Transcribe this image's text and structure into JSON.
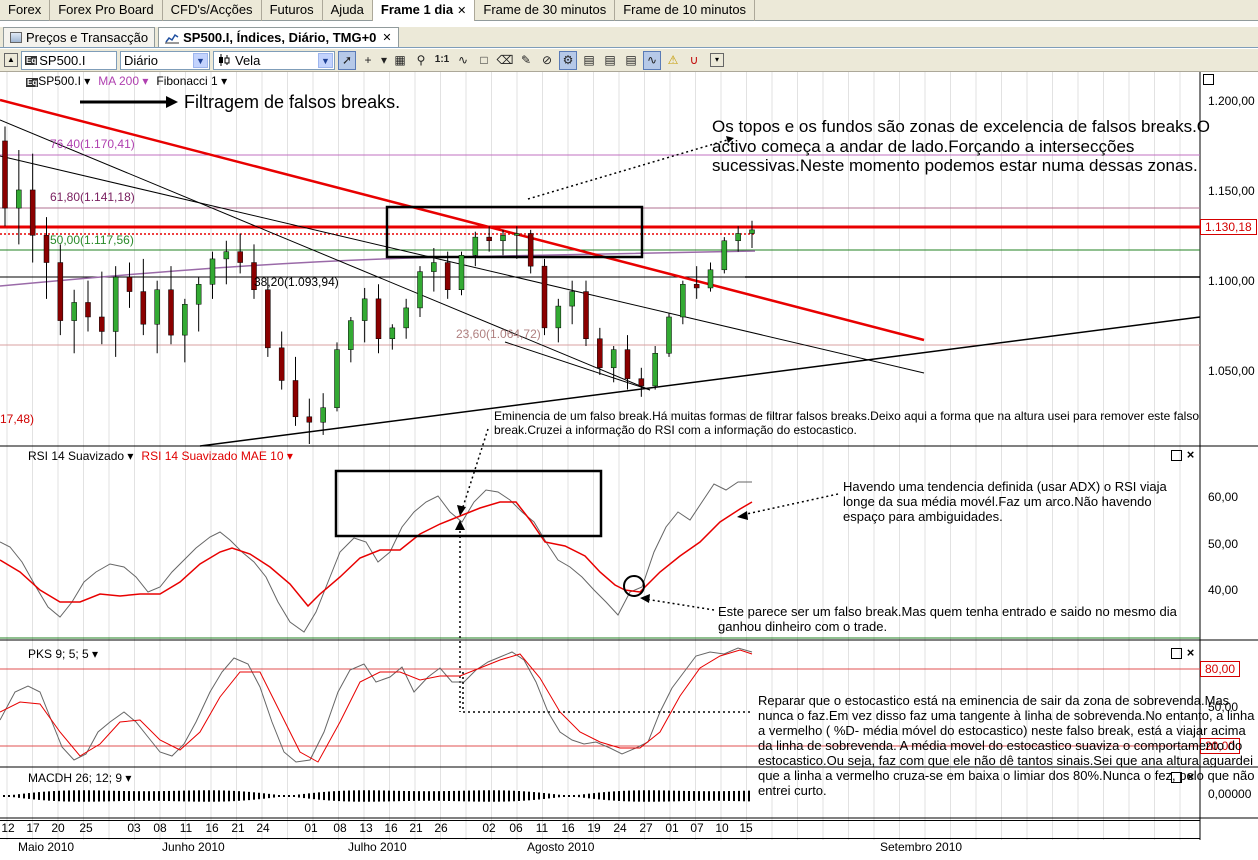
{
  "menu": {
    "tabs": [
      {
        "label": "Forex",
        "active": false
      },
      {
        "label": "Forex Pro Board",
        "active": false
      },
      {
        "label": "CFD's/Acções",
        "active": false
      },
      {
        "label": "Futuros",
        "active": false
      },
      {
        "label": "Ajuda",
        "active": false
      },
      {
        "label": "Frame 1 dia",
        "active": true,
        "closable": true
      },
      {
        "label": "Frame de 30 minutos",
        "active": false
      },
      {
        "label": "Frame de 10 minutos",
        "active": false
      }
    ],
    "close_glyph": "✕"
  },
  "doc_tabs": [
    {
      "label": "Preços e Transacção",
      "active": false,
      "icon": "table-icon"
    },
    {
      "label": "SP500.I, Índices, Diário, TMG+0",
      "active": true,
      "icon": "chart-icon",
      "closable": true
    }
  ],
  "toolbar": {
    "symbol": "SP500.I",
    "symbol_prefix": "Eq",
    "period": "Diário",
    "chart_style": "Vela",
    "icons": [
      "cursor-icon",
      "crosshair-icon",
      "grid-icon",
      "zoom-icon",
      "scale-1-1-icon",
      "wave-icon",
      "rectangle-icon",
      "eraser-icon",
      "pencil-icon",
      "delete-icon",
      "bars-toggle-icon",
      "notes-icon",
      "notes2-icon",
      "notes3-icon",
      "wave-pressed-icon",
      "warning-icon",
      "magnet-icon"
    ]
  },
  "main_pane": {
    "label_symbol": "SP500.I",
    "label_ma": "MA 200",
    "label_fib": "Fibonacci 1",
    "price_ticks": [
      "1.200,00",
      "1.150,00",
      "1.100,00",
      "1.050,00"
    ],
    "current_price": "1.130,18",
    "fib_levels": [
      {
        "label": "76,40(1.170,41)",
        "color": "#b040b0"
      },
      {
        "label": "61,80(1.141,18)",
        "color": "#7a2060"
      },
      {
        "label": "50,00(1.117,56)",
        "color": "#2a8a2a"
      },
      {
        "label": "38,20(1.093,94)",
        "color": "#000000"
      },
      {
        "label": "23,60(1.064,72)",
        "color": "#b08080"
      },
      {
        "label": "17,48)",
        "color": "#d00000"
      }
    ],
    "annotation_title": "Filtragem de falsos breaks.",
    "annotation_topos": "Os topos e os fundos são zonas de excelencia de falsos breaks.O activo começa a andar de lado.Forçando a intersecções sucessivas.Neste momento podemos estar numa dessas zonas.",
    "annotation_eminencia": "Eminencia de um falso break.Há muitas formas de filtrar falsos breaks.Deixo aqui a forma que na altura usei para remover este falso break.Cruzei a informação do RSI com a informação do estocastico."
  },
  "rsi_pane": {
    "label": "RSI 14 Suavizado",
    "label_mae": "RSI 14 Suavizado MAE 10",
    "ticks": [
      "60,00",
      "50,00",
      "40,00"
    ],
    "annotation_tendencia": "Havendo uma tendencia definida (usar ADX) o RSI viaja longe da sua média movél.Faz um arco.Não havendo espaço para ambiguidades.",
    "annotation_falso": "Este parece ser um falso break.Mas quem tenha entrado e saido no mesmo dia ganhou dinheiro com o trade."
  },
  "pks_pane": {
    "label": "PKS 9; 5; 5",
    "ticks": [
      "80,00",
      "50,00",
      "20,00"
    ],
    "annotation_estocastico": "Reparar que o estocastico está na eminencia de sair da zona de sobrevenda.Mas nunca o faz.Em vez disso faz uma tangente à linha de sobrevenda.No entanto, a linha a vermelho ( %D- média móvel do estocastico) neste falso break, está a viajar acima da linha de sobrevenda. A média movel do estocastico suaviza o comportamento do estocastico.Ou seja, faz com que ele não dê tantos sinais.Sei que ana altura aguardei que a linha a vermelho cruza-se em baixa o limiar dos 80%.Nunca o fez, pelo que não entrei curto."
  },
  "macd_pane": {
    "label": "MACDH 26; 12; 9",
    "tick": "0,00000"
  },
  "x_axis": {
    "days": [
      "12",
      "17",
      "20",
      "25",
      "03",
      "08",
      "11",
      "16",
      "21",
      "24",
      "01",
      "08",
      "13",
      "16",
      "21",
      "26",
      "02",
      "06",
      "11",
      "16",
      "19",
      "24",
      "27",
      "01",
      "07",
      "10",
      "15"
    ],
    "months": [
      "Maio 2010",
      "Junho 2010",
      "Julho 2010",
      "Agosto 2010",
      "Setembro 2010"
    ]
  },
  "chart_data": {
    "type": "candlestick",
    "y_range": [
      1010,
      1215
    ],
    "candles": [
      [
        1177,
        1185,
        1130,
        1140
      ],
      [
        1140,
        1172,
        1120,
        1150
      ],
      [
        1150,
        1170,
        1110,
        1125
      ],
      [
        1125,
        1135,
        1090,
        1110
      ],
      [
        1110,
        1120,
        1070,
        1078
      ],
      [
        1078,
        1095,
        1060,
        1088
      ],
      [
        1088,
        1100,
        1072,
        1080
      ],
      [
        1080,
        1105,
        1065,
        1072
      ],
      [
        1072,
        1108,
        1058,
        1102
      ],
      [
        1102,
        1110,
        1085,
        1094
      ],
      [
        1094,
        1112,
        1070,
        1076
      ],
      [
        1076,
        1100,
        1060,
        1095
      ],
      [
        1095,
        1108,
        1065,
        1070
      ],
      [
        1070,
        1090,
        1055,
        1087
      ],
      [
        1087,
        1102,
        1072,
        1098
      ],
      [
        1098,
        1116,
        1090,
        1112
      ],
      [
        1112,
        1122,
        1098,
        1116
      ],
      [
        1116,
        1126,
        1104,
        1110
      ],
      [
        1110,
        1120,
        1090,
        1095
      ],
      [
        1095,
        1102,
        1058,
        1063
      ],
      [
        1063,
        1072,
        1040,
        1045
      ],
      [
        1045,
        1058,
        1020,
        1025
      ],
      [
        1025,
        1035,
        1010,
        1022
      ],
      [
        1022,
        1038,
        1015,
        1030
      ],
      [
        1030,
        1066,
        1028,
        1062
      ],
      [
        1062,
        1080,
        1055,
        1078
      ],
      [
        1078,
        1096,
        1066,
        1090
      ],
      [
        1090,
        1098,
        1060,
        1068
      ],
      [
        1068,
        1076,
        1062,
        1074
      ],
      [
        1074,
        1090,
        1068,
        1085
      ],
      [
        1085,
        1108,
        1080,
        1105
      ],
      [
        1105,
        1118,
        1094,
        1110
      ],
      [
        1110,
        1116,
        1090,
        1095
      ],
      [
        1095,
        1116,
        1092,
        1114
      ],
      [
        1114,
        1127,
        1108,
        1124
      ],
      [
        1124,
        1130,
        1116,
        1122
      ],
      [
        1122,
        1128,
        1114,
        1125
      ],
      [
        1125,
        1130,
        1112,
        1126
      ],
      [
        1126,
        1128,
        1104,
        1108
      ],
      [
        1108,
        1112,
        1070,
        1074
      ],
      [
        1074,
        1090,
        1066,
        1086
      ],
      [
        1086,
        1100,
        1076,
        1094
      ],
      [
        1094,
        1100,
        1064,
        1068
      ],
      [
        1068,
        1074,
        1048,
        1052
      ],
      [
        1052,
        1064,
        1044,
        1062
      ],
      [
        1062,
        1070,
        1040,
        1046
      ],
      [
        1046,
        1052,
        1036,
        1042
      ],
      [
        1042,
        1064,
        1040,
        1060
      ],
      [
        1060,
        1082,
        1058,
        1080
      ],
      [
        1080,
        1100,
        1076,
        1098
      ],
      [
        1098,
        1108,
        1090,
        1096
      ],
      [
        1096,
        1110,
        1094,
        1106
      ],
      [
        1106,
        1124,
        1104,
        1122
      ],
      [
        1122,
        1130,
        1116,
        1126
      ],
      [
        1126,
        1133,
        1118,
        1128
      ]
    ]
  }
}
